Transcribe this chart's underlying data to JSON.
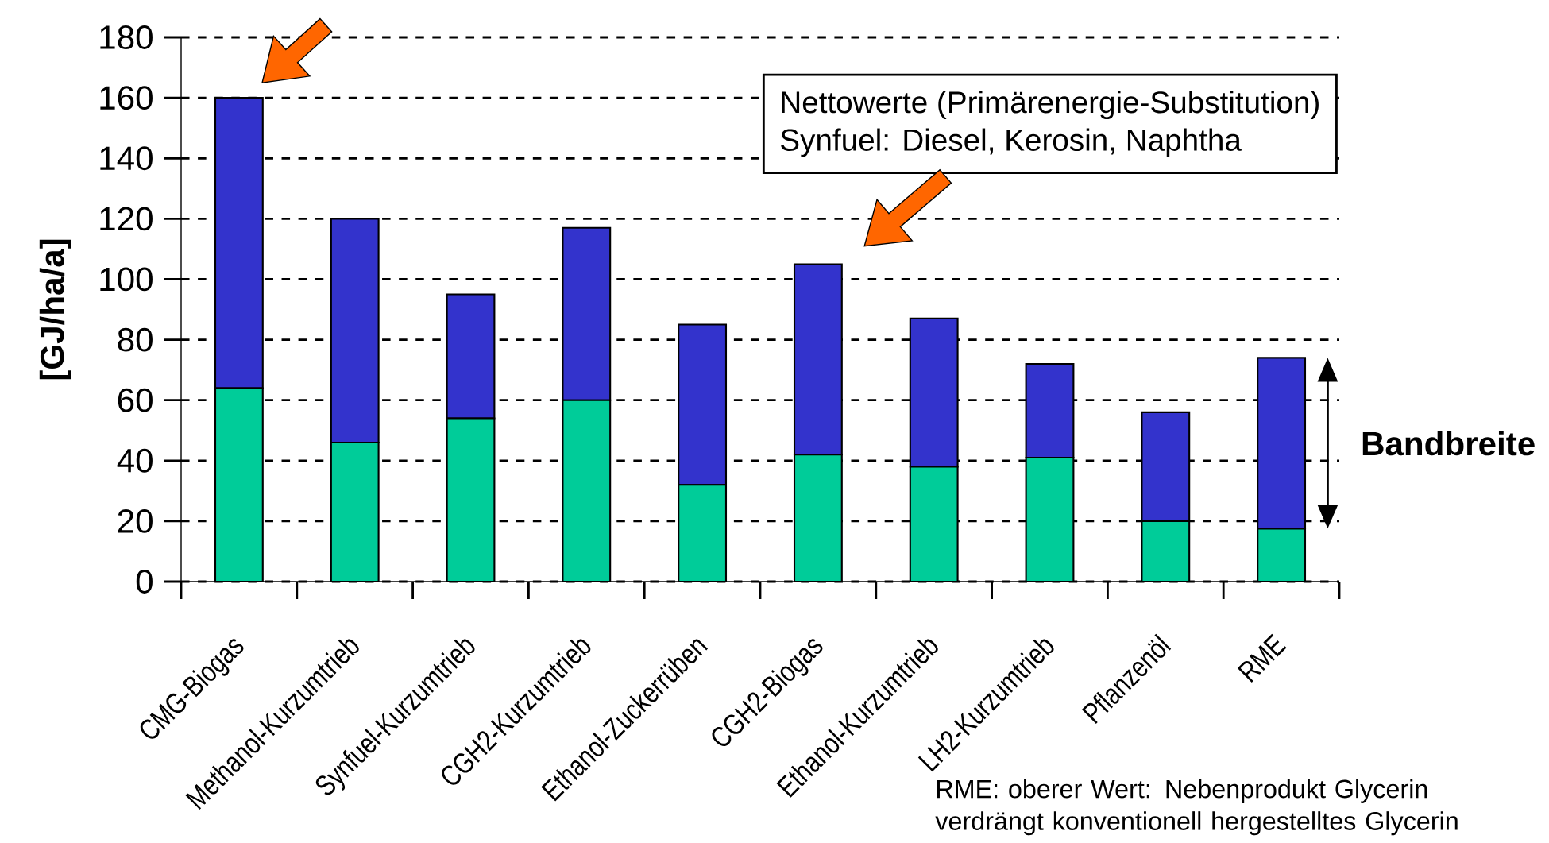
{
  "chart_data": {
    "type": "bar",
    "stacked": true,
    "ylabel": "[GJ/ha/a]",
    "categories": [
      "CMG-Biogas",
      "Methanol-Kurzumtrieb",
      "Synfuel-Kurzumtrieb",
      "CGH2-Kurzumtrieb",
      "Ethanol-Zuckerrüben",
      "CGH2-Biogas",
      "Ethanol-Kurzumtrieb",
      "LH2-Kurzumtrieb",
      "Pflanzenöl",
      "RME"
    ],
    "series": [
      {
        "color": "#00cc99",
        "values": [
          64,
          46,
          54,
          60,
          32,
          42,
          38,
          41,
          20,
          17.5
        ]
      },
      {
        "color": "#3333cc",
        "values": [
          96,
          74,
          41,
          57,
          53,
          63,
          49,
          31,
          36,
          56.5
        ]
      }
    ],
    "ylim": [
      0,
      180
    ],
    "yticks": [
      0,
      20,
      40,
      60,
      80,
      100,
      120,
      140,
      160,
      180
    ],
    "grid": "y",
    "annotations": [
      "Nettowerte (Primärenergie-Substitution)",
      "Synfuel: Diesel, Kerosin, Naphtha",
      "Bandbreite",
      "RME: oberer Wert: Nebenprodukt Glycerin verdrängt konventionell hergestelltes Glycerin"
    ]
  }
}
